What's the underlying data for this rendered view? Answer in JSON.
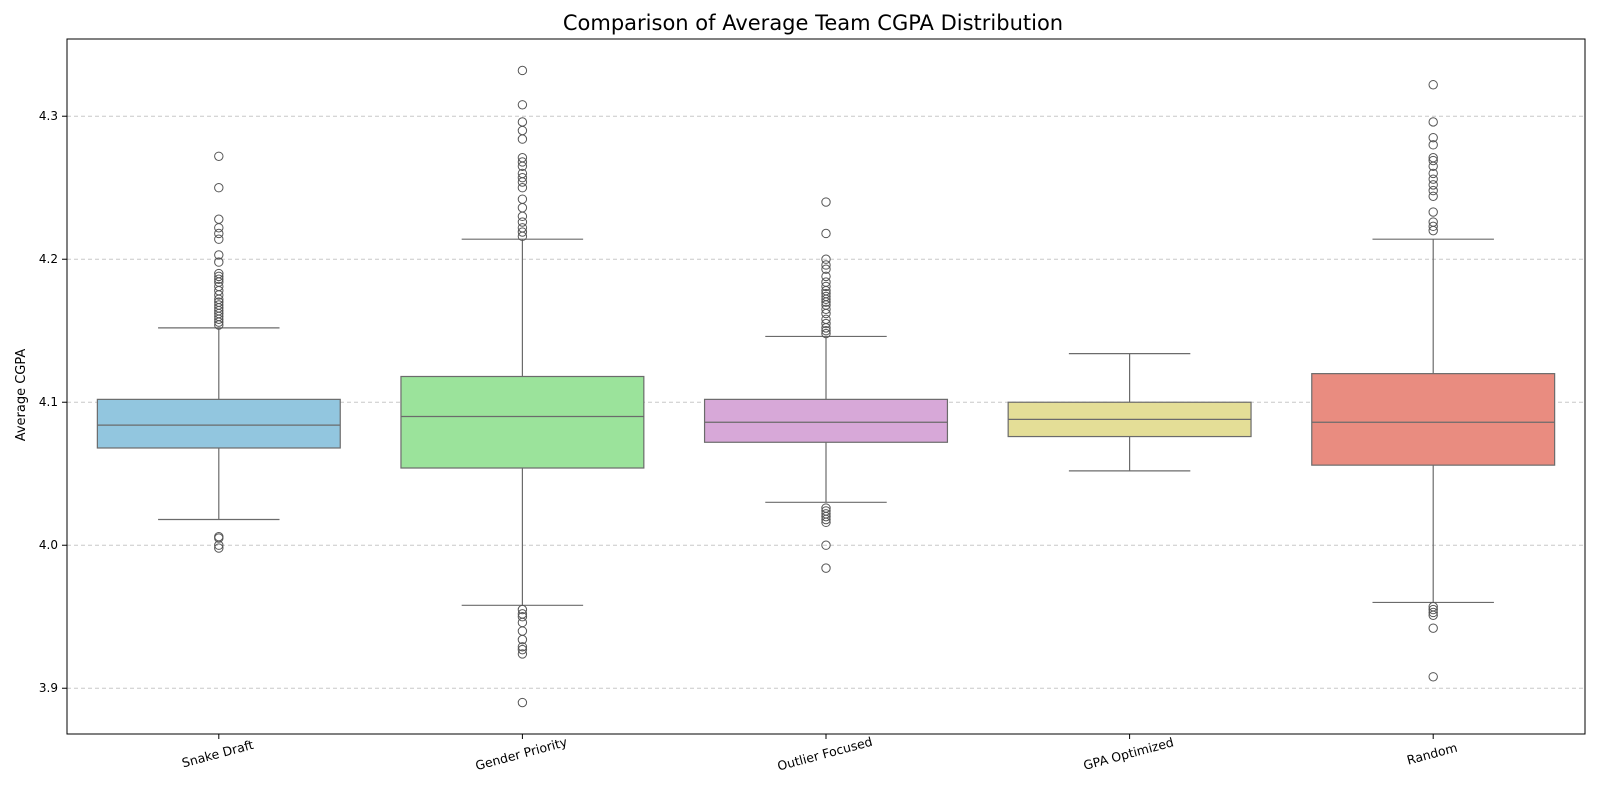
{
  "chart_data": {
    "type": "box",
    "title": "Comparison of Average Team CGPA Distribution",
    "xlabel": "",
    "ylabel": "Average CGPA",
    "ylim": [
      3.868,
      4.354
    ],
    "yticks": [
      3.9,
      4.0,
      4.1,
      4.2,
      4.3
    ],
    "ytick_labels": [
      "3.9",
      "4.0",
      "4.1",
      "4.2",
      "4.3"
    ],
    "grid": true,
    "categories": [
      "Snake Draft",
      "Gender Priority",
      "Outlier Focused",
      "GPA Optimized",
      "Random"
    ],
    "series": [
      {
        "name": "Snake Draft",
        "color": "#92c6df",
        "whisker_low": 4.018,
        "q1": 4.068,
        "median": 4.084,
        "q3": 4.102,
        "whisker_high": 4.152,
        "outliers": [
          3.998,
          4.0,
          4.005,
          4.006,
          4.154,
          4.156,
          4.158,
          4.16,
          4.162,
          4.164,
          4.166,
          4.168,
          4.17,
          4.172,
          4.175,
          4.178,
          4.181,
          4.184,
          4.186,
          4.188,
          4.19,
          4.198,
          4.203,
          4.214,
          4.218,
          4.222,
          4.228,
          4.25,
          4.272
        ]
      },
      {
        "name": "Gender Priority",
        "color": "#9be39b",
        "whisker_low": 3.958,
        "q1": 4.054,
        "median": 4.09,
        "q3": 4.118,
        "whisker_high": 4.214,
        "outliers": [
          3.89,
          3.924,
          3.927,
          3.929,
          3.934,
          3.94,
          3.946,
          3.95,
          3.952,
          3.955,
          4.216,
          4.219,
          4.222,
          4.226,
          4.23,
          4.236,
          4.242,
          4.25,
          4.254,
          4.257,
          4.26,
          4.265,
          4.268,
          4.271,
          4.284,
          4.29,
          4.296,
          4.308,
          4.332
        ]
      },
      {
        "name": "Outlier Focused",
        "color": "#d7a8d8",
        "whisker_low": 4.03,
        "q1": 4.072,
        "median": 4.086,
        "q3": 4.102,
        "whisker_high": 4.146,
        "outliers": [
          3.984,
          4.0,
          4.016,
          4.018,
          4.02,
          4.022,
          4.024,
          4.026,
          4.148,
          4.15,
          4.152,
          4.155,
          4.158,
          4.162,
          4.165,
          4.168,
          4.17,
          4.172,
          4.174,
          4.176,
          4.178,
          4.181,
          4.184,
          4.188,
          4.193,
          4.196,
          4.2,
          4.218,
          4.24
        ]
      },
      {
        "name": "GPA Optimized",
        "color": "#e4de97",
        "whisker_low": 4.052,
        "q1": 4.076,
        "median": 4.088,
        "q3": 4.1,
        "whisker_high": 4.134,
        "outliers": []
      },
      {
        "name": "Random",
        "color": "#e98c80",
        "whisker_low": 3.96,
        "q1": 4.056,
        "median": 4.086,
        "q3": 4.12,
        "whisker_high": 4.214,
        "outliers": [
          3.908,
          3.942,
          3.951,
          3.953,
          3.955,
          3.957,
          4.22,
          4.223,
          4.226,
          4.233,
          4.244,
          4.248,
          4.252,
          4.256,
          4.26,
          4.265,
          4.269,
          4.271,
          4.28,
          4.285,
          4.296,
          4.322
        ]
      }
    ]
  }
}
